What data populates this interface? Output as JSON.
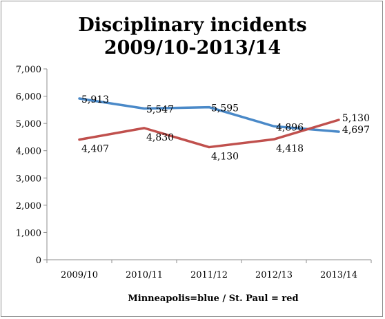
{
  "chart_data": {
    "type": "line",
    "title": "Disciplinary incidents\n2009/10-2013/14",
    "xlabel": "Minneapolis=blue / St. Paul = red",
    "ylabel": "",
    "ylim": [
      0,
      7000
    ],
    "yticks": [
      "0",
      "1,000",
      "2,000",
      "3,000",
      "4,000",
      "5,000",
      "6,000",
      "7,000"
    ],
    "categories": [
      "2009/10",
      "2010/11",
      "2011/12",
      "2012/13",
      "2013/14"
    ],
    "grid": false,
    "legend": "none",
    "series": [
      {
        "color": "#4a89c8",
        "values": [
          5913,
          5547,
          5595,
          4896,
          4697
        ],
        "labels": [
          "5,913",
          "5,547",
          "5,595",
          "4,896",
          "4,697"
        ]
      },
      {
        "color": "#c0504d",
        "values": [
          4407,
          4830,
          4130,
          4418,
          5130
        ],
        "labels": [
          "4,407",
          "4,830",
          "4,130",
          "4,418",
          "5,130"
        ]
      }
    ]
  }
}
